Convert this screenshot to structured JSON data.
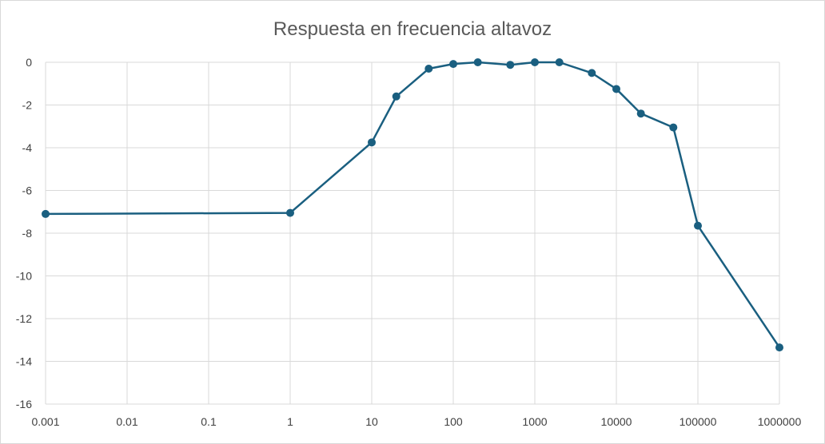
{
  "chart_data": {
    "type": "line",
    "title": "Respuesta en frecuencia altavoz",
    "xlabel": "",
    "ylabel": "",
    "x_scale": "log",
    "xlim": [
      0.001,
      1000000
    ],
    "ylim": [
      -16,
      0
    ],
    "x_ticks": [
      "0.001",
      "0.01",
      "0.1",
      "1",
      "10",
      "100",
      "1000",
      "10000",
      "100000",
      "1000000"
    ],
    "y_ticks": [
      "0",
      "-2",
      "-4",
      "-6",
      "-8",
      "-10",
      "-12",
      "-14",
      "-16"
    ],
    "grid": true,
    "legend": "none",
    "color": "#1a5f80",
    "series": [
      {
        "x": [
          0.001,
          1,
          10,
          20,
          50,
          100,
          200,
          500,
          1000,
          2000,
          5000,
          10000,
          20000,
          50000,
          100000,
          1000000
        ],
        "y": [
          -7.1,
          -7.05,
          -3.75,
          -1.6,
          -0.3,
          -0.08,
          0,
          -0.12,
          0,
          0,
          -0.5,
          -1.25,
          -2.4,
          -3.05,
          -7.65,
          -13.35
        ]
      }
    ]
  }
}
